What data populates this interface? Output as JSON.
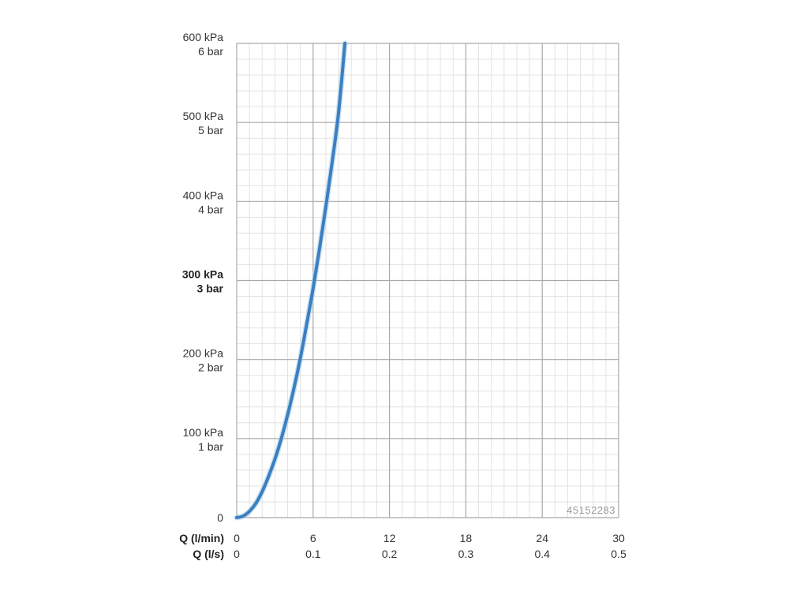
{
  "chart_data": {
    "type": "line",
    "title": "",
    "x_axis": {
      "label_primary": "Q (l/min)",
      "label_secondary": "Q (l/s)",
      "range": [
        0,
        30
      ],
      "ticks_primary": [
        "0",
        "6",
        "12",
        "18",
        "24",
        "30"
      ],
      "ticks_secondary": [
        "0",
        "0.1",
        "0.2",
        "0.3",
        "0.4",
        "0.5"
      ],
      "tick_values": [
        0,
        6,
        12,
        18,
        24,
        30
      ],
      "minor_step": 1
    },
    "y_axis": {
      "range": [
        0,
        600
      ],
      "unit": "kPa",
      "tick_values": [
        0,
        100,
        200,
        300,
        400,
        500,
        600
      ],
      "ticks": [
        {
          "value": 0,
          "line1": "0",
          "line2": ""
        },
        {
          "value": 100,
          "line1": "100 kPa",
          "line2": "1 bar"
        },
        {
          "value": 200,
          "line1": "200 kPa",
          "line2": "2 bar"
        },
        {
          "value": 300,
          "line1": "300 kPa",
          "line2": "3 bar",
          "bold": true
        },
        {
          "value": 400,
          "line1": "400 kPa",
          "line2": "4 bar"
        },
        {
          "value": 500,
          "line1": "500 kPa",
          "line2": "5 bar"
        },
        {
          "value": 600,
          "line1": "600 kPa",
          "line2": "6 bar"
        }
      ],
      "minor_step": 20
    },
    "grid": true,
    "series": [
      {
        "color": "#3a7fc1",
        "x": [
          0,
          0.5,
          1,
          1.5,
          2,
          2.5,
          3,
          3.5,
          4,
          4.5,
          5,
          5.5,
          6,
          6.5,
          7,
          7.5,
          8,
          8.5
        ],
        "y": [
          0,
          2,
          8,
          18,
          33,
          52,
          74,
          100,
          130,
          164,
          202,
          245,
          290,
          340,
          393,
          450,
          513,
          600
        ]
      }
    ],
    "annotation": "45152283"
  }
}
